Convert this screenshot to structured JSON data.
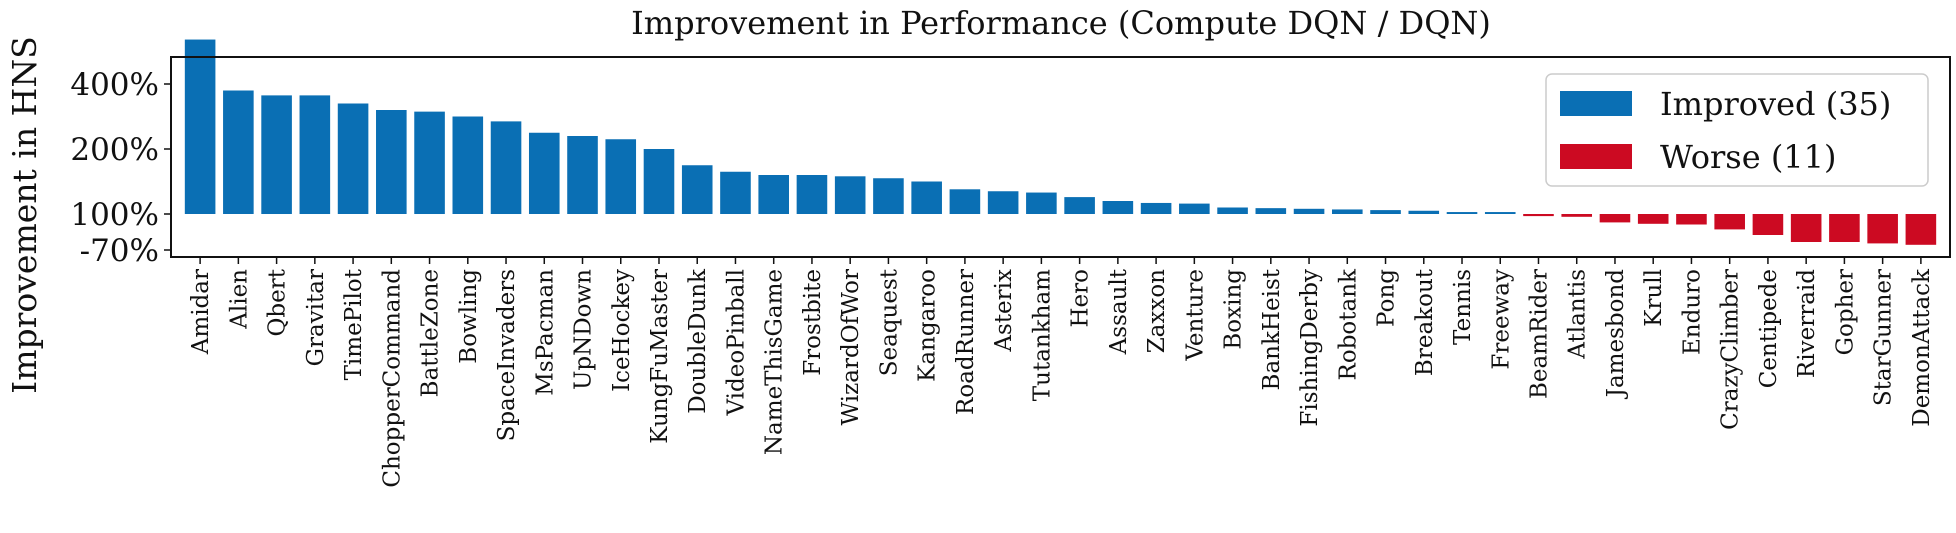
{
  "chart_data": {
    "type": "bar",
    "title": "Improvement in Performance (Compute DQN / DQN)",
    "xlabel": "",
    "ylabel": "Improvement in HNS",
    "y_ticks": [
      {
        "value": 400,
        "label": "400%"
      },
      {
        "value": 200,
        "label": "200%"
      },
      {
        "value": 100,
        "label": "100%"
      },
      {
        "value": -70,
        "label": "-70%"
      }
    ],
    "ylim": [
      -80,
      482
    ],
    "grid": false,
    "legend_position": "top-right",
    "colors": {
      "improved": "#0a6fb4",
      "worse": "#cc0a22"
    },
    "series": [
      {
        "name": "Improved (35)",
        "key": "improved"
      },
      {
        "name": "Worse (11)",
        "key": "worse"
      }
    ],
    "categories": [
      "Amidar",
      "Alien",
      "Qbert",
      "Gravitar",
      "TimePilot",
      "ChopperCommand",
      "BattleZone",
      "Bowling",
      "SpaceInvaders",
      "MsPacman",
      "UpNDown",
      "IceHockey",
      "KungFuMaster",
      "DoubleDunk",
      "VideoPinball",
      "NameThisGame",
      "Frostbite",
      "WizardOfWor",
      "Seaquest",
      "Kangaroo",
      "RoadRunner",
      "Asterix",
      "Tutankham",
      "Hero",
      "Assault",
      "Zaxxon",
      "Venture",
      "Boxing",
      "BankHeist",
      "FishingDerby",
      "Robotank",
      "Pong",
      "Breakout",
      "Tennis",
      "Freeway",
      "BeamRider",
      "Atlantis",
      "Jamesbond",
      "Krull",
      "Enduro",
      "CrazyClimber",
      "Centipede",
      "Riverraid",
      "Gopher",
      "StarGunner",
      "DemonAttack"
    ],
    "values": [
      435,
      280,
      265,
      265,
      240,
      220,
      215,
      200,
      185,
      150,
      140,
      130,
      100,
      75,
      65,
      60,
      60,
      58,
      55,
      50,
      38,
      35,
      33,
      26,
      20,
      17,
      16,
      10,
      9,
      8,
      7,
      6,
      5,
      3,
      3,
      -3,
      -4,
      -12,
      -14,
      -15,
      -22,
      -30,
      -40,
      -40,
      -42,
      -44
    ],
    "groups": [
      "improved",
      "improved",
      "improved",
      "improved",
      "improved",
      "improved",
      "improved",
      "improved",
      "improved",
      "improved",
      "improved",
      "improved",
      "improved",
      "improved",
      "improved",
      "improved",
      "improved",
      "improved",
      "improved",
      "improved",
      "improved",
      "improved",
      "improved",
      "improved",
      "improved",
      "improved",
      "improved",
      "improved",
      "improved",
      "improved",
      "improved",
      "improved",
      "improved",
      "improved",
      "improved",
      "worse",
      "worse",
      "worse",
      "worse",
      "worse",
      "worse",
      "worse",
      "worse",
      "worse",
      "worse",
      "worse"
    ]
  }
}
